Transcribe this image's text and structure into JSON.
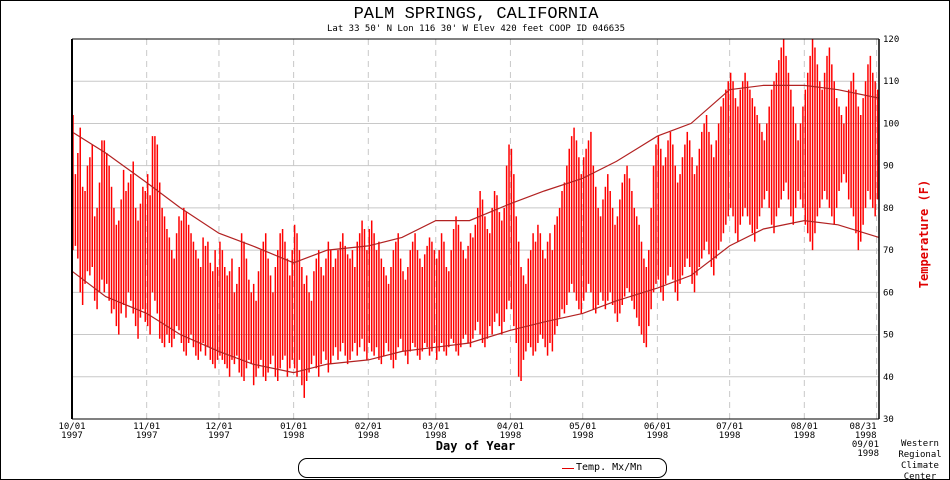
{
  "chart_data": {
    "type": "bar",
    "title": "PALM SPRINGS, CALIFORNIA",
    "subtitle": "Lat 33 50' N   Lon 116 30' W   Elev 420 feet     COOP ID 046635",
    "xlabel": "Day of Year",
    "ylabel": "Temperature (F)",
    "ylim": [
      30,
      120
    ],
    "yticks": [
      30,
      40,
      50,
      60,
      70,
      80,
      90,
      100,
      110,
      120
    ],
    "y_axis_side": "right",
    "grid": true,
    "xlim": [
      "1997-10-01",
      "1998-09-01"
    ],
    "xticks": [
      {
        "date": "1997-10-01",
        "line1": "10/01",
        "line2": "1997"
      },
      {
        "date": "1997-11-01",
        "line1": "11/01",
        "line2": "1997"
      },
      {
        "date": "1997-12-01",
        "line1": "12/01",
        "line2": "1997"
      },
      {
        "date": "1998-01-01",
        "line1": "01/01",
        "line2": "1998"
      },
      {
        "date": "1998-02-01",
        "line1": "02/01",
        "line2": "1998"
      },
      {
        "date": "1998-03-01",
        "line1": "03/01",
        "line2": "1998"
      },
      {
        "date": "1998-04-01",
        "line1": "04/01",
        "line2": "1998"
      },
      {
        "date": "1998-05-01",
        "line1": "05/01",
        "line2": "1998"
      },
      {
        "date": "1998-06-01",
        "line1": "06/01",
        "line2": "1998"
      },
      {
        "date": "1998-07-01",
        "line1": "07/01",
        "line2": "1998"
      },
      {
        "date": "1998-08-01",
        "line1": "08/01",
        "line2": "1998"
      },
      {
        "date": "1998-08-31",
        "line1": "08/31",
        "line2": "1998"
      },
      {
        "date": "1998-09-01",
        "line1": "09/01",
        "line2": "1998"
      }
    ],
    "legend": {
      "label": "Temp. Mx/Mn",
      "placement": "bottom"
    },
    "colors": {
      "bars": "#ff0000",
      "normals": "#b22222",
      "grid": "#c8c8c8"
    },
    "daily": {
      "start": "1997-10-01",
      "max": [
        102,
        88,
        93,
        99,
        85,
        84,
        90,
        92,
        95,
        78,
        80,
        86,
        96,
        96,
        93,
        90,
        85,
        80,
        76,
        77,
        82,
        89,
        84,
        86,
        88,
        91,
        80,
        77,
        81,
        85,
        84,
        88,
        83,
        97,
        97,
        95,
        86,
        80,
        78,
        75,
        73,
        70,
        68,
        74,
        78,
        77,
        80,
        79,
        76,
        74,
        72,
        70,
        68,
        66,
        73,
        71,
        72,
        67,
        65,
        70,
        66,
        72,
        70,
        66,
        64,
        65,
        68,
        60,
        62,
        66,
        74,
        72,
        68,
        63,
        60,
        62,
        58,
        65,
        70,
        72,
        74,
        68,
        64,
        60,
        66,
        70,
        74,
        75,
        72,
        68,
        64,
        70,
        76,
        74,
        70,
        66,
        62,
        64,
        60,
        58,
        65,
        68,
        70,
        66,
        64,
        68,
        72,
        70,
        66,
        68,
        70,
        72,
        74,
        71,
        69,
        68,
        70,
        66,
        72,
        74,
        77,
        75,
        70,
        75,
        77,
        74,
        70,
        72,
        68,
        66,
        64,
        62,
        66,
        70,
        72,
        74,
        68,
        65,
        63,
        66,
        70,
        72,
        74,
        70,
        68,
        66,
        69,
        71,
        73,
        72,
        70,
        68,
        70,
        74,
        72,
        66,
        65,
        70,
        75,
        78,
        76,
        72,
        70,
        68,
        71,
        74,
        73,
        76,
        80,
        84,
        82,
        78,
        75,
        74,
        80,
        84,
        83,
        79,
        77,
        80,
        90,
        95,
        94,
        88,
        78,
        72,
        66,
        64,
        62,
        68,
        70,
        74,
        72,
        76,
        74,
        70,
        68,
        72,
        74,
        70,
        76,
        78,
        80,
        84,
        86,
        90,
        94,
        97,
        99,
        96,
        92,
        88,
        92,
        94,
        96,
        98,
        90,
        85,
        80,
        78,
        82,
        85,
        88,
        84,
        80,
        76,
        78,
        82,
        86,
        88,
        90,
        87,
        84,
        80,
        78,
        76,
        72,
        68,
        66,
        70,
        80,
        90,
        95,
        97,
        94,
        90,
        92,
        96,
        98,
        95,
        90,
        86,
        88,
        92,
        95,
        98,
        96,
        92,
        88,
        90,
        94,
        98,
        100,
        102,
        98,
        95,
        92,
        96,
        100,
        104,
        106,
        108,
        110,
        112,
        110,
        106,
        104,
        108,
        110,
        112,
        110,
        108,
        106,
        104,
        102,
        100,
        98,
        96,
        100,
        104,
        108,
        110,
        112,
        115,
        118,
        120,
        116,
        112,
        108,
        104,
        100,
        96,
        100,
        104,
        108,
        112,
        116,
        120,
        118,
        114,
        110,
        108,
        112,
        116,
        118,
        114,
        110,
        106,
        104,
        102,
        100,
        104,
        108,
        110,
        112,
        108,
        104,
        102,
        106,
        110,
        114,
        116,
        112,
        110,
        108
      ],
      "min": [
        70,
        71,
        68,
        60,
        57,
        62,
        65,
        64,
        66,
        58,
        56,
        60,
        63,
        60,
        62,
        58,
        55,
        56,
        52,
        50,
        55,
        57,
        54,
        60,
        58,
        55,
        52,
        49,
        54,
        56,
        53,
        52,
        50,
        60,
        58,
        55,
        49,
        48,
        47,
        50,
        48,
        47,
        49,
        52,
        51,
        48,
        46,
        45,
        48,
        50,
        47,
        45,
        44,
        46,
        48,
        45,
        47,
        44,
        43,
        42,
        44,
        45,
        44,
        43,
        42,
        40,
        44,
        43,
        45,
        41,
        40,
        39,
        42,
        44,
        43,
        38,
        40,
        42,
        44,
        40,
        39,
        41,
        43,
        45,
        40,
        39,
        42,
        44,
        45,
        40,
        42,
        44,
        42,
        40,
        44,
        38,
        35,
        39,
        41,
        43,
        45,
        42,
        40,
        43,
        46,
        44,
        41,
        43,
        45,
        47,
        44,
        46,
        48,
        45,
        43,
        44,
        46,
        48,
        45,
        47,
        49,
        46,
        44,
        48,
        46,
        45,
        47,
        44,
        43,
        45,
        48,
        46,
        44,
        42,
        44,
        47,
        49,
        46,
        45,
        43,
        46,
        48,
        47,
        45,
        44,
        46,
        48,
        47,
        45,
        46,
        48,
        44,
        46,
        48,
        46,
        45,
        47,
        49,
        48,
        46,
        45,
        47,
        49,
        50,
        48,
        47,
        49,
        51,
        53,
        50,
        48,
        47,
        49,
        52,
        50,
        53,
        55,
        52,
        50,
        53,
        56,
        58,
        56,
        52,
        48,
        40,
        39,
        44,
        46,
        48,
        47,
        45,
        46,
        48,
        50,
        49,
        47,
        45,
        48,
        46,
        50,
        52,
        54,
        56,
        55,
        57,
        60,
        62,
        60,
        58,
        56,
        55,
        58,
        60,
        62,
        60,
        56,
        55,
        57,
        60,
        58,
        56,
        58,
        60,
        57,
        55,
        53,
        55,
        57,
        59,
        61,
        60,
        58,
        56,
        54,
        52,
        50,
        48,
        47,
        52,
        56,
        60,
        62,
        63,
        60,
        58,
        62,
        64,
        66,
        63,
        60,
        58,
        62,
        64,
        66,
        68,
        66,
        62,
        60,
        64,
        66,
        68,
        70,
        72,
        69,
        66,
        64,
        68,
        70,
        72,
        74,
        76,
        78,
        80,
        78,
        74,
        72,
        76,
        78,
        80,
        78,
        76,
        74,
        72,
        75,
        78,
        80,
        82,
        84,
        80,
        76,
        74,
        78,
        80,
        82,
        84,
        86,
        82,
        78,
        76,
        80,
        84,
        82,
        80,
        76,
        74,
        72,
        70,
        74,
        78,
        80,
        82,
        84,
        82,
        80,
        78,
        76,
        80,
        84,
        86,
        88,
        86,
        82,
        80,
        78,
        74,
        70,
        72,
        76,
        80,
        84,
        82,
        80,
        78,
        82
      ]
    },
    "normals": {
      "max": [
        [
          "1997-10-01",
          98
        ],
        [
          "1997-10-15",
          93
        ],
        [
          "1997-11-01",
          86
        ],
        [
          "1997-11-15",
          80
        ],
        [
          "1997-12-01",
          74
        ],
        [
          "1997-12-15",
          71
        ],
        [
          "1998-01-01",
          67
        ],
        [
          "1998-01-15",
          70
        ],
        [
          "1998-02-01",
          71
        ],
        [
          "1998-02-15",
          73
        ],
        [
          "1998-03-01",
          77
        ],
        [
          "1998-03-15",
          77
        ],
        [
          "1998-04-01",
          81
        ],
        [
          "1998-04-15",
          84
        ],
        [
          "1998-05-01",
          87
        ],
        [
          "1998-05-15",
          91
        ],
        [
          "1998-06-01",
          97
        ],
        [
          "1998-06-15",
          100
        ],
        [
          "1998-07-01",
          108
        ],
        [
          "1998-07-15",
          109
        ],
        [
          "1998-08-01",
          109
        ],
        [
          "1998-08-15",
          108
        ],
        [
          "1998-09-01",
          106
        ]
      ],
      "min": [
        [
          "1997-10-01",
          65
        ],
        [
          "1997-10-15",
          59
        ],
        [
          "1997-11-01",
          55
        ],
        [
          "1997-11-15",
          50
        ],
        [
          "1997-12-01",
          46
        ],
        [
          "1997-12-15",
          43
        ],
        [
          "1998-01-01",
          41
        ],
        [
          "1998-01-15",
          43
        ],
        [
          "1998-02-01",
          44
        ],
        [
          "1998-02-15",
          46
        ],
        [
          "1998-03-01",
          47
        ],
        [
          "1998-03-15",
          48
        ],
        [
          "1998-04-01",
          51
        ],
        [
          "1998-04-15",
          53
        ],
        [
          "1998-05-01",
          55
        ],
        [
          "1998-05-15",
          58
        ],
        [
          "1998-06-01",
          61
        ],
        [
          "1998-06-15",
          64
        ],
        [
          "1998-07-01",
          71
        ],
        [
          "1998-07-15",
          75
        ],
        [
          "1998-08-01",
          77
        ],
        [
          "1998-08-15",
          76
        ],
        [
          "1998-09-01",
          73
        ]
      ]
    }
  },
  "credit": [
    "Western",
    "Regional",
    "Climate",
    "Center"
  ]
}
